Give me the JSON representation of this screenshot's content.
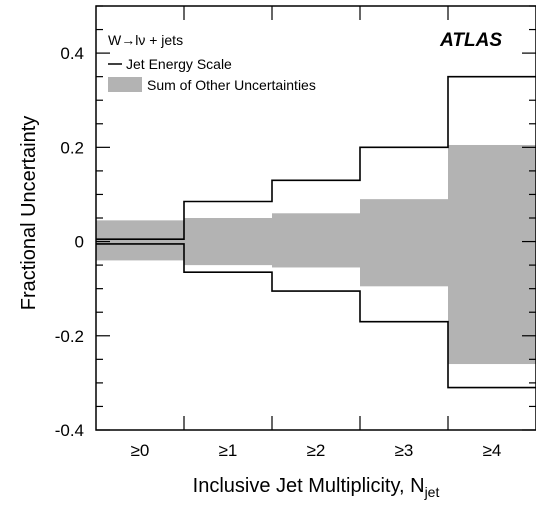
{
  "chart_data": {
    "type": "area",
    "process": "W→lν + jets",
    "experiment": "ATLAS",
    "xlabel": "Inclusive Jet Multiplicity, N",
    "xlabel_sub": "jet",
    "ylabel": "Fractional Uncertainty",
    "ylim": [
      -0.4,
      0.5
    ],
    "yticks": [
      -0.4,
      -0.2,
      0,
      0.2,
      0.4
    ],
    "ytick_labels": [
      "-0.4",
      "-0.2",
      "0",
      "0.2",
      "0.4"
    ],
    "categories": [
      "≥0",
      "≥1",
      "≥2",
      "≥3",
      "≥4"
    ],
    "legend_position": "top-left",
    "series": [
      {
        "name": "Jet Energy Scale",
        "style": "outline",
        "color": "#000000",
        "upper": [
          0.005,
          0.085,
          0.13,
          0.2,
          0.35
        ],
        "lower": [
          -0.005,
          -0.065,
          -0.105,
          -0.17,
          -0.31
        ]
      },
      {
        "name": "Sum of Other Uncertainties",
        "style": "filled",
        "color": "#b3b3b3",
        "upper": [
          0.045,
          0.05,
          0.06,
          0.09,
          0.205
        ],
        "lower": [
          -0.04,
          -0.05,
          -0.055,
          -0.095,
          -0.26
        ]
      }
    ]
  }
}
